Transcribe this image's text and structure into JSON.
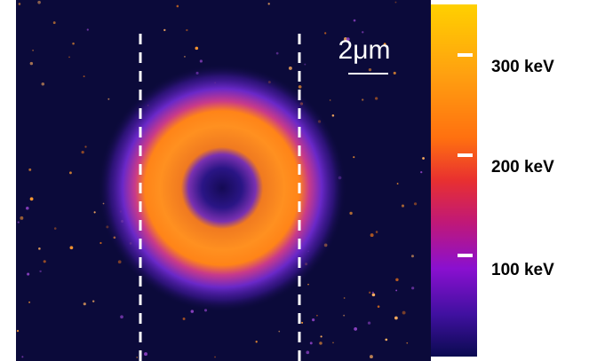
{
  "scale_bar": {
    "label": "2μm"
  },
  "colorbar": {
    "labels": [
      "300 keV",
      "200 keV",
      "100 keV"
    ]
  }
}
